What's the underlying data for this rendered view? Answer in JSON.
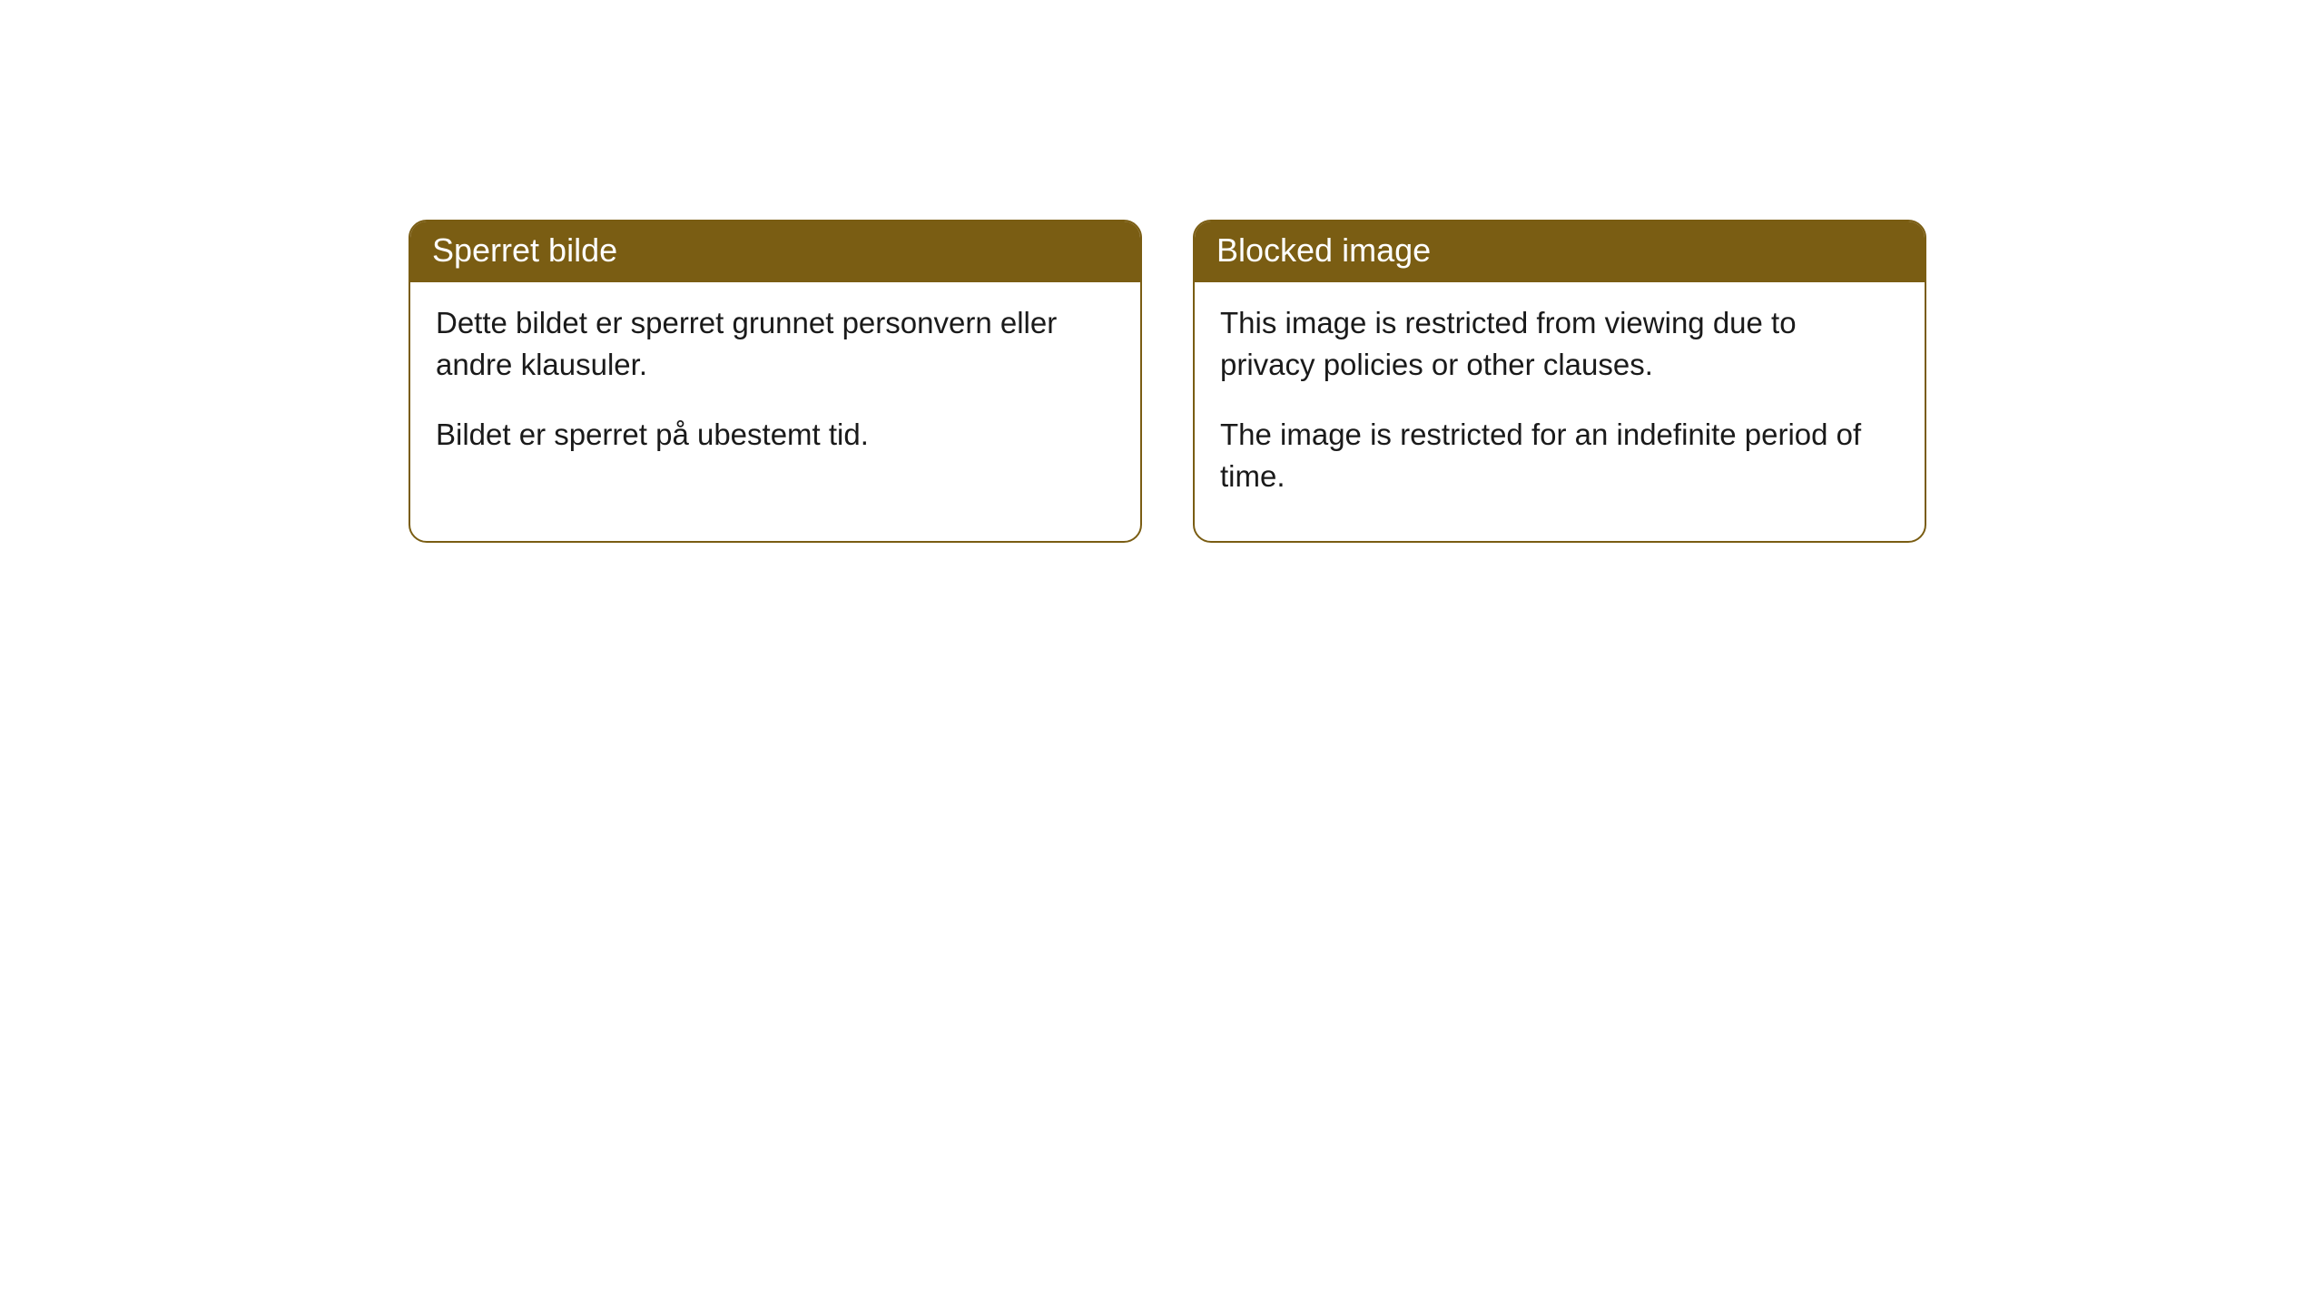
{
  "cards": [
    {
      "header": "Sperret bilde",
      "paragraph1": "Dette bildet er sperret grunnet personvern eller andre klausuler.",
      "paragraph2": "Bildet er sperret på ubestemt tid."
    },
    {
      "header": "Blocked image",
      "paragraph1": "This image is restricted from viewing due to privacy policies or other clauses.",
      "paragraph2": "The image is restricted for an indefinite period of time."
    }
  ],
  "style": {
    "header_bg_color": "#7a5d13",
    "header_text_color": "#ffffff",
    "border_color": "#7a5d13",
    "body_bg_color": "#ffffff",
    "body_text_color": "#1a1a1a",
    "border_radius": 20,
    "header_fontsize": 36,
    "body_fontsize": 33
  }
}
